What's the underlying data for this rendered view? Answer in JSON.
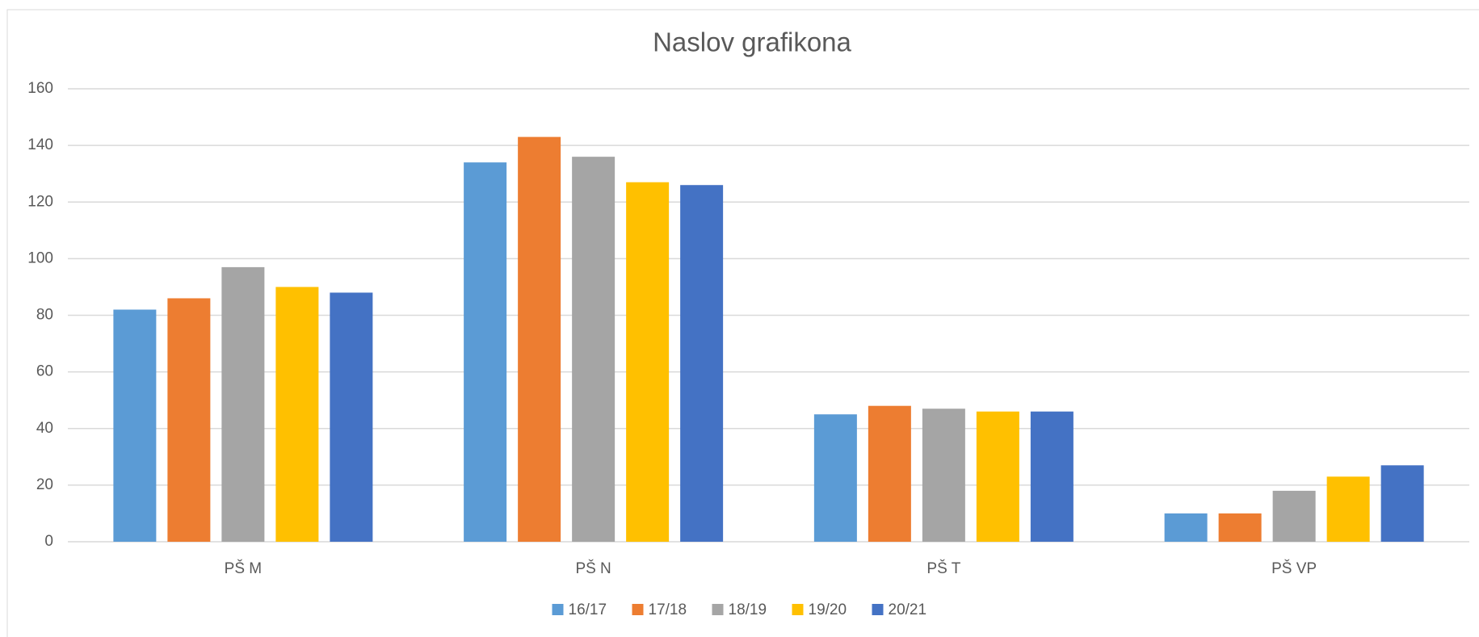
{
  "chart_data": {
    "type": "bar",
    "title": "Naslov grafikona",
    "categories": [
      "PŠ M",
      "PŠ N",
      "PŠ T",
      "PŠ VP"
    ],
    "series": [
      {
        "name": "16/17",
        "color": "#5b9bd5",
        "values": [
          82,
          134,
          45,
          10
        ]
      },
      {
        "name": "17/18",
        "color": "#ed7d31",
        "values": [
          86,
          143,
          48,
          10
        ]
      },
      {
        "name": "18/19",
        "color": "#a5a5a5",
        "values": [
          97,
          136,
          47,
          18
        ]
      },
      {
        "name": "19/20",
        "color": "#ffc000",
        "values": [
          90,
          127,
          46,
          23
        ]
      },
      {
        "name": "20/21",
        "color": "#4472c4",
        "values": [
          88,
          126,
          46,
          27
        ]
      }
    ],
    "ylim": [
      0,
      160
    ],
    "yticks": [
      0,
      20,
      40,
      60,
      80,
      100,
      120,
      140,
      160
    ],
    "grid": true,
    "legend": "bottom"
  }
}
